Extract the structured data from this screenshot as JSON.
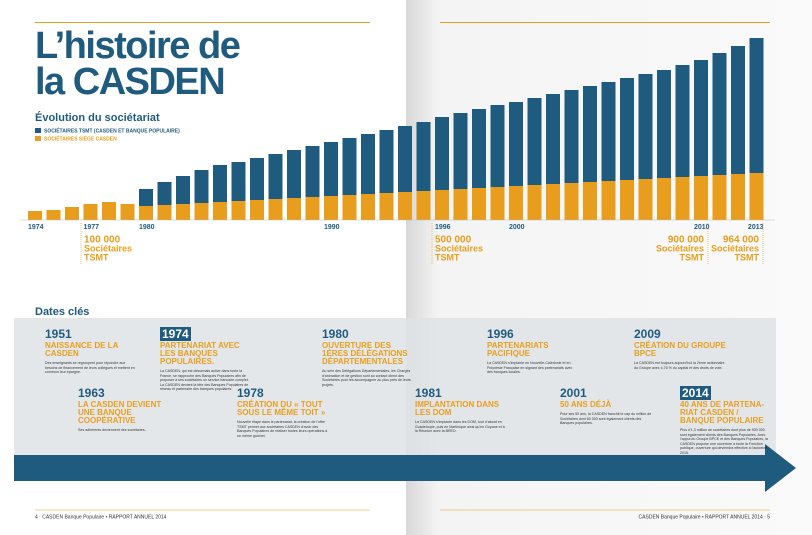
{
  "header": {
    "title_lines": [
      "L’histoire de",
      "la CASDEN"
    ]
  },
  "chart_data": {
    "type": "stacked-bar",
    "title": "Évolution du sociétariat",
    "categories": [
      "1974",
      null,
      null,
      "1977",
      null,
      null,
      "1980",
      null,
      null,
      null,
      null,
      null,
      null,
      null,
      null,
      null,
      "1990",
      null,
      null,
      null,
      null,
      null,
      "1996",
      null,
      null,
      null,
      "2000",
      null,
      null,
      null,
      null,
      null,
      null,
      null,
      null,
      null,
      "2010",
      null,
      null,
      "2013"
    ],
    "series": [
      {
        "name": "SOCIÉTAIRES SIÈGE CASDEN",
        "color": "#e89e1c",
        "values": [
          45000,
          50000,
          65000,
          80000,
          90000,
          80000,
          70000,
          75000,
          80000,
          85000,
          90000,
          95000,
          100000,
          105000,
          110000,
          115000,
          120000,
          125000,
          130000,
          135000,
          140000,
          145000,
          150000,
          155000,
          160000,
          165000,
          170000,
          175000,
          180000,
          185000,
          190000,
          195000,
          200000,
          205000,
          210000,
          215000,
          220000,
          225000,
          230000,
          235000
        ]
      },
      {
        "name": "SOCIÉTAIRES TSMT (CASDEN ET BANQUE POPULAIRE)",
        "color": "#1f5b7e",
        "values": [
          null,
          null,
          null,
          null,
          null,
          null,
          85000,
          115000,
          140000,
          165000,
          185000,
          195000,
          210000,
          225000,
          240000,
          255000,
          270000,
          285000,
          300000,
          315000,
          330000,
          345000,
          365000,
          380000,
          395000,
          410000,
          420000,
          435000,
          450000,
          465000,
          480000,
          495000,
          510000,
          525000,
          540000,
          560000,
          580000,
          610000,
          640000,
          675000
        ]
      }
    ],
    "ylim": [
      0,
      1000000
    ],
    "annotations": [
      {
        "lines": [
          "100 000",
          "Sociétaires",
          "TSMT"
        ]
      },
      {
        "lines": [
          "500 000",
          "Sociétaires",
          "TSMT"
        ]
      },
      {
        "lines": [
          "900 000",
          "Sociétaires",
          "TSMT"
        ]
      },
      {
        "lines": [
          "964 000",
          "Sociétaires",
          "TSMT"
        ]
      }
    ]
  },
  "timeline": {
    "title": "Dates clés",
    "events": [
      {
        "year": "1951",
        "heading": "NAISSANCE DE LA CASDEN",
        "body": "Des enseignants se regroupent pour répondre aux besoins de financement de leurs collègues et mettent en commun leur épargne."
      },
      {
        "year": "1963",
        "heading": "LA CASDEN DEVIENT UNE BANQUE COOPÉRATIVE",
        "body": "Ses adhérents deviennent des sociétaires."
      },
      {
        "year": "1974",
        "heading": "PARTENARIAT AVEC LES BANQUES POPULAIRES.",
        "body": "La CASDEN, qui est désormais active dans toute la France, se rapproche des Banques Populaires afin de proposer à ses sociétaires un service bancaire complet. La CASDEN devient la tête des Banques Populaires de réseau et partenaire des banques populaires."
      },
      {
        "year": "1978",
        "heading": "CRÉATION DU « TOUT SOUS LE MÊME TOIT »",
        "body": "Nouvelle étape dans le partenariat, la création de l’offre TSMT permet aux sociétaires CASDEN d’avoir des Banques Populaires de réaliser toutes leurs opérations à un même guichet."
      },
      {
        "year": "1980",
        "heading": "OUVERTURE DES 1ÈRES DÉLÉGATIONS DÉPARTEMENTALES",
        "body": "Au sein des Délégations Départementales, les Chargés d’animation et de gestion sont au contact direct des Sociétaires pour les accompagner au plus près de leurs projets."
      },
      {
        "year": "1981",
        "heading": "IMPLANTATION DANS LES DOM",
        "body": "La CASDEN s’implante dans les DOM, tout d’abord en Guadeloupe, puis en Martinique ainsi qu’en Guyane et à la Réunion avec la BRED."
      },
      {
        "year": "1996",
        "heading": "PARTENARIATS PACIFIQUE",
        "body": "La CASDEN s’implante en Nouvelle-Calédonie et en Polynésie Française en signant des partenariats avec des banques locales."
      },
      {
        "year": "2001",
        "heading": "50 ANS DÉJÀ",
        "body": "Pour ses 50 ans, la CASDEN franchit le cap du million de Sociétaires dont 60 000 sont également clients des Banques populaires."
      },
      {
        "year": "2009",
        "heading": "CRÉATION DU GROUPE BPCE",
        "body": "La CASDEN est toujours aujourd’hui la 2ème actionnaire du Groupe avec 4,76 % du capital et des droits de vote."
      },
      {
        "year": "2014",
        "heading": "40 ANS DE PARTENA-RIAT CASDEN / BANQUE POPULAIRE",
        "body": "Plus d’1,3 million de sociétaires dont plus de 930 000 sont également clients des Banques Populaires. Avec l’appui du Groupe BPCE et des Banques Populaires, la CASDEN propose une ouverture à toute la Fonction publique, ouverture qui deviendra effective à l’automne 2015."
      }
    ]
  },
  "footer": {
    "left": "4 · CASDEN Banque Populaire • RAPPORT ANNUEL 2014",
    "right": "CASDEN Banque Populaire • RAPPORT ANNUEL 2014 · 5"
  }
}
